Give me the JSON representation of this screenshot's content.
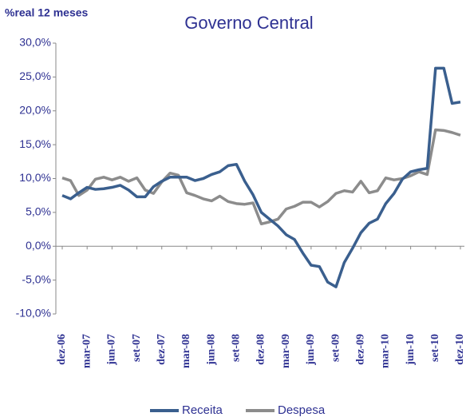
{
  "chart_data": {
    "type": "line",
    "title": "Governo Central",
    "y_label": "%real 12 meses",
    "categories": [
      "dez-06",
      null,
      null,
      "mar-07",
      null,
      null,
      "jun-07",
      null,
      null,
      "set-07",
      null,
      null,
      "dez-07",
      null,
      null,
      "mar-08",
      null,
      null,
      "jun-08",
      null,
      null,
      "set-08",
      null,
      null,
      "dez-08",
      null,
      null,
      "mar-09",
      null,
      null,
      "jun-09",
      null,
      null,
      "set-09",
      null,
      null,
      "dez-09",
      null,
      null,
      "mar-10",
      null,
      null,
      "jun-10",
      null,
      null,
      "set-10",
      null,
      null,
      "dez-10"
    ],
    "series": [
      {
        "name": "Receita",
        "color": "#3a5f8e",
        "values": [
          7.5,
          7.0,
          7.9,
          8.7,
          8.4,
          8.5,
          8.7,
          9.0,
          8.3,
          7.3,
          7.3,
          8.8,
          9.6,
          10.2,
          10.2,
          10.2,
          9.7,
          10.0,
          10.6,
          11.0,
          11.9,
          12.1,
          9.6,
          7.6,
          5.0,
          4.0,
          3.0,
          1.7,
          1.0,
          -1.0,
          -2.8,
          -3.0,
          -5.3,
          -6.0,
          -2.4,
          -0.3,
          2.0,
          3.4,
          4.0,
          6.3,
          7.8,
          9.9,
          11.0,
          11.3,
          11.5,
          26.3,
          26.3,
          21.1,
          21.3
        ]
      },
      {
        "name": "Despesa",
        "color": "#8c8c8c",
        "values": [
          10.1,
          9.7,
          7.5,
          8.3,
          9.9,
          10.2,
          9.8,
          10.2,
          9.6,
          10.1,
          8.3,
          7.8,
          9.5,
          10.8,
          10.5,
          7.9,
          7.5,
          7.0,
          6.7,
          7.4,
          6.6,
          6.3,
          6.2,
          6.4,
          3.3,
          3.6,
          4.0,
          5.5,
          5.9,
          6.5,
          6.5,
          5.8,
          6.6,
          7.8,
          8.2,
          8.0,
          9.6,
          7.9,
          8.2,
          10.1,
          9.8,
          10.0,
          10.4,
          11.0,
          10.6,
          17.2,
          17.1,
          16.8,
          16.4
        ]
      }
    ],
    "ylim": [
      -10,
      30
    ],
    "yticks": [
      {
        "value": -10,
        "label": "-10,0%"
      },
      {
        "value": -5,
        "label": "-5,0%"
      },
      {
        "value": 0,
        "label": "0,0%"
      },
      {
        "value": 5,
        "label": "5,0%"
      },
      {
        "value": 10,
        "label": "10,0%"
      },
      {
        "value": 15,
        "label": "15,0%"
      },
      {
        "value": 20,
        "label": "20,0%"
      },
      {
        "value": 25,
        "label": "25,0%"
      },
      {
        "value": 30,
        "label": "30,0%"
      }
    ],
    "legend": "bottom"
  }
}
